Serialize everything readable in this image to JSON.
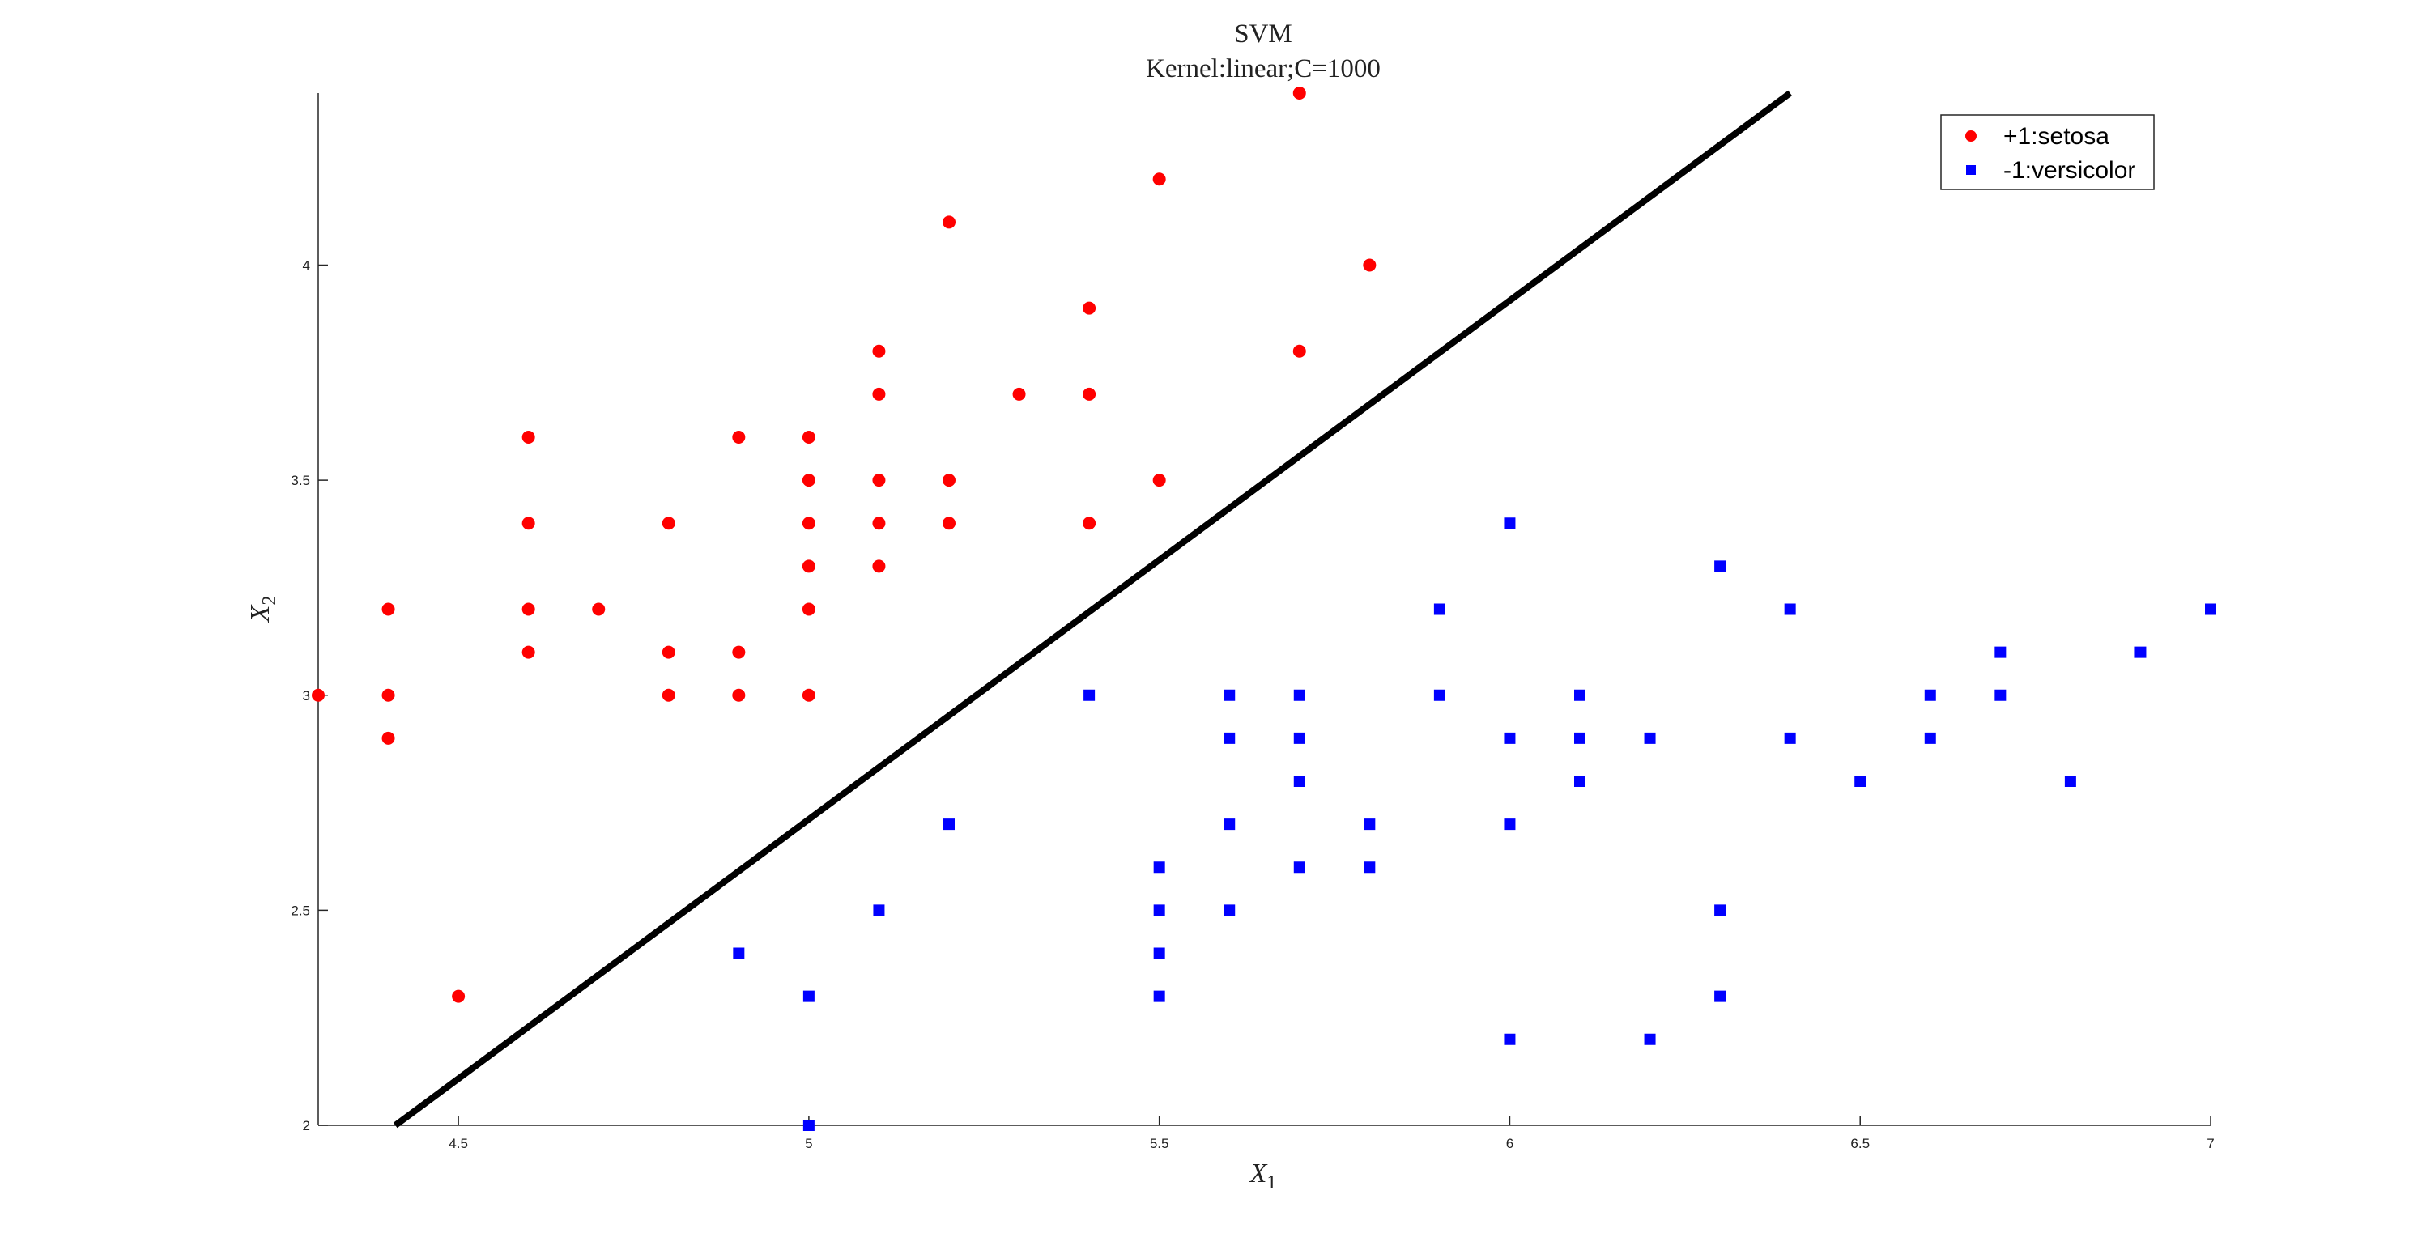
{
  "chart_data": {
    "type": "scatter",
    "title": "SVM",
    "subtitle": "Kernel:linear;C=1000",
    "xlabel": "X",
    "xlabel_sub": "1",
    "ylabel": "X",
    "ylabel_sub": "2",
    "xlim": [
      4.3,
      7.0
    ],
    "ylim": [
      2.0,
      4.4
    ],
    "xticks": [
      4.5,
      5,
      5.5,
      6,
      6.5,
      7
    ],
    "xtick_labels": [
      "4.5",
      "5",
      "5.5",
      "6",
      "6.5",
      "7"
    ],
    "yticks": [
      2,
      2.5,
      3,
      3.5,
      4
    ],
    "ytick_labels": [
      "2",
      "2.5",
      "3",
      "3.5",
      "4"
    ],
    "grid": false,
    "legend_position": "top-right",
    "series": [
      {
        "name": "+1:setosa",
        "marker": "circle",
        "color": "#ff0000",
        "points": [
          [
            4.3,
            3.0
          ],
          [
            4.4,
            3.2
          ],
          [
            4.4,
            3.0
          ],
          [
            4.4,
            2.9
          ],
          [
            4.5,
            2.3
          ],
          [
            4.6,
            3.6
          ],
          [
            4.6,
            3.4
          ],
          [
            4.6,
            3.2
          ],
          [
            4.6,
            3.1
          ],
          [
            4.7,
            3.2
          ],
          [
            4.8,
            3.4
          ],
          [
            4.8,
            3.1
          ],
          [
            4.8,
            3.0
          ],
          [
            4.9,
            3.6
          ],
          [
            4.9,
            3.1
          ],
          [
            4.9,
            3.0
          ],
          [
            5.0,
            3.6
          ],
          [
            5.0,
            3.5
          ],
          [
            5.0,
            3.4
          ],
          [
            5.0,
            3.3
          ],
          [
            5.0,
            3.2
          ],
          [
            5.0,
            3.0
          ],
          [
            5.1,
            3.8
          ],
          [
            5.1,
            3.7
          ],
          [
            5.1,
            3.5
          ],
          [
            5.1,
            3.4
          ],
          [
            5.1,
            3.3
          ],
          [
            5.2,
            4.1
          ],
          [
            5.2,
            3.5
          ],
          [
            5.2,
            3.4
          ],
          [
            5.3,
            3.7
          ],
          [
            5.4,
            3.9
          ],
          [
            5.4,
            3.7
          ],
          [
            5.4,
            3.4
          ],
          [
            5.5,
            4.2
          ],
          [
            5.5,
            3.5
          ],
          [
            5.7,
            4.4
          ],
          [
            5.7,
            3.8
          ],
          [
            5.8,
            4.0
          ]
        ]
      },
      {
        "name": "-1:versicolor",
        "marker": "square",
        "color": "#0000ff",
        "points": [
          [
            4.9,
            2.4
          ],
          [
            5.0,
            2.3
          ],
          [
            5.0,
            2.0
          ],
          [
            5.1,
            2.5
          ],
          [
            5.2,
            2.7
          ],
          [
            5.4,
            3.0
          ],
          [
            5.5,
            2.6
          ],
          [
            5.5,
            2.5
          ],
          [
            5.5,
            2.4
          ],
          [
            5.5,
            2.3
          ],
          [
            5.6,
            3.0
          ],
          [
            5.6,
            2.9
          ],
          [
            5.6,
            2.7
          ],
          [
            5.6,
            2.5
          ],
          [
            5.7,
            3.0
          ],
          [
            5.7,
            2.9
          ],
          [
            5.7,
            2.8
          ],
          [
            5.7,
            2.6
          ],
          [
            5.8,
            2.7
          ],
          [
            5.8,
            2.6
          ],
          [
            5.9,
            3.2
          ],
          [
            5.9,
            3.0
          ],
          [
            6.0,
            3.4
          ],
          [
            6.0,
            2.9
          ],
          [
            6.0,
            2.7
          ],
          [
            6.0,
            2.2
          ],
          [
            6.1,
            3.0
          ],
          [
            6.1,
            2.9
          ],
          [
            6.1,
            2.8
          ],
          [
            6.2,
            2.9
          ],
          [
            6.2,
            2.2
          ],
          [
            6.3,
            3.3
          ],
          [
            6.3,
            2.5
          ],
          [
            6.3,
            2.3
          ],
          [
            6.4,
            3.2
          ],
          [
            6.4,
            2.9
          ],
          [
            6.5,
            2.8
          ],
          [
            6.6,
            3.0
          ],
          [
            6.6,
            2.9
          ],
          [
            6.7,
            3.1
          ],
          [
            6.7,
            3.0
          ],
          [
            6.8,
            2.8
          ],
          [
            6.9,
            3.1
          ],
          [
            7.0,
            3.2
          ]
        ]
      }
    ],
    "decision_boundary": {
      "color": "#000000",
      "points": [
        [
          4.41,
          2.0
        ],
        [
          6.4,
          4.4
        ]
      ]
    }
  }
}
